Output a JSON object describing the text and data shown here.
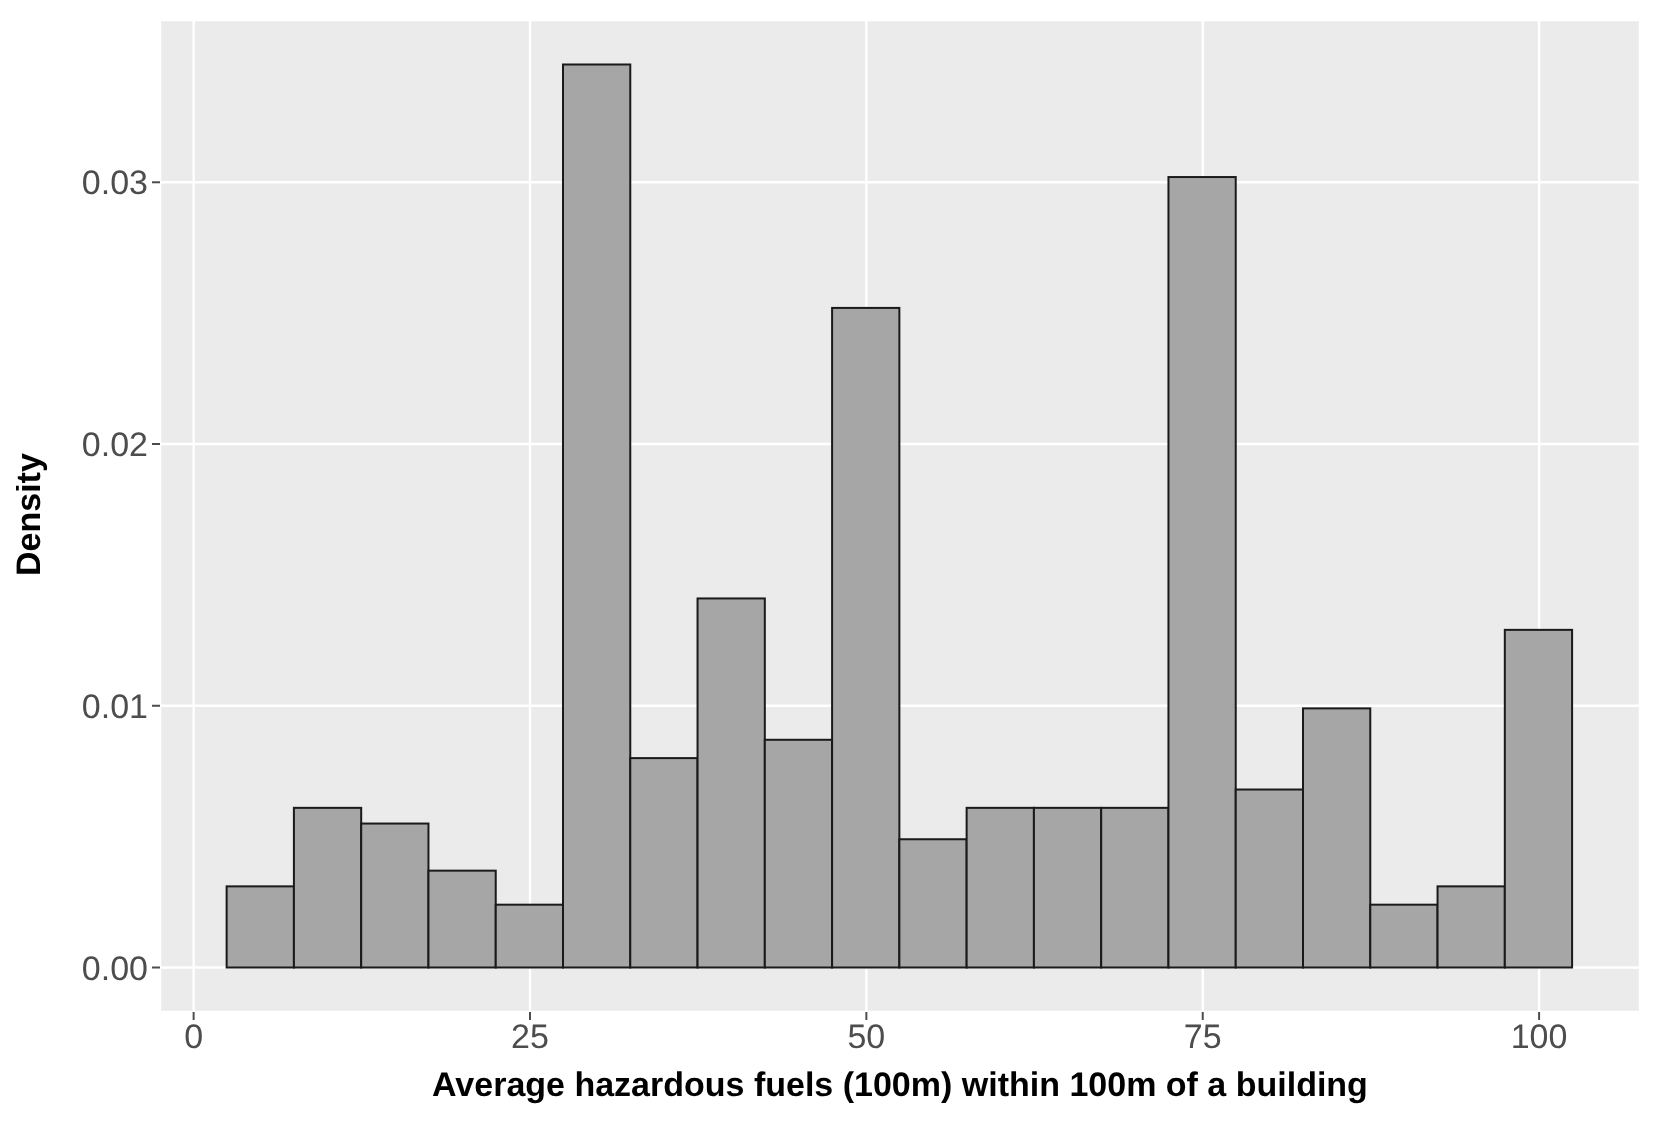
{
  "chart_data": {
    "type": "histogram",
    "xlabel": "Average hazardous fuels (100m) within 100m of a building",
    "ylabel": "Density",
    "bins": [
      2.5,
      7.5,
      12.5,
      17.5,
      22.5,
      27.5,
      32.5,
      37.5,
      42.5,
      47.5,
      52.5,
      57.5,
      62.5,
      67.5,
      72.5,
      77.5,
      82.5,
      87.5,
      92.5,
      97.5,
      102.5
    ],
    "values": [
      0.0031,
      0.0061,
      0.0055,
      0.0037,
      0.0024,
      0.0345,
      0.008,
      0.0141,
      0.0087,
      0.0252,
      0.0049,
      0.0061,
      0.0061,
      0.0061,
      0.0302,
      0.0068,
      0.0099,
      0.0024,
      0.0031,
      0.0129
    ],
    "color": "#a6a6a6",
    "xlim": [
      -2.5,
      107.5
    ],
    "ylim": [
      -0.0017,
      0.0362
    ],
    "xticks": [
      0,
      25,
      50,
      75,
      100
    ],
    "yticks": [
      {
        "value": 0,
        "label": "0.00"
      },
      {
        "value": 0.01,
        "label": "0.01"
      },
      {
        "value": 0.02,
        "label": "0.02"
      },
      {
        "value": 0.03,
        "label": "0.03"
      }
    ],
    "grid": true
  }
}
